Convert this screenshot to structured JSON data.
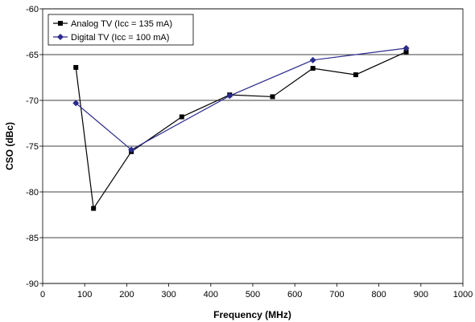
{
  "chart_data": {
    "type": "line",
    "xlabel": "Frequency (MHz)",
    "ylabel": "CSO (dBc)",
    "xlim": [
      0,
      1000
    ],
    "ylim": [
      -90,
      -60
    ],
    "x_ticks": [
      0,
      100,
      200,
      300,
      400,
      500,
      600,
      700,
      800,
      900,
      1000
    ],
    "y_ticks": [
      -60,
      -65,
      -70,
      -75,
      -80,
      -85,
      -90
    ],
    "grid": "horizontal",
    "legend_position": "top-left",
    "series": [
      {
        "name": "Analog TV (Icc = 135 mA)",
        "color": "#000000",
        "marker": "square",
        "x": [
          79,
          121,
          211,
          331,
          445,
          547,
          643,
          745,
          865
        ],
        "y": [
          -66.4,
          -81.8,
          -75.6,
          -71.8,
          -69.4,
          -69.6,
          -66.5,
          -67.2,
          -64.7
        ]
      },
      {
        "name": "Digital TV (Icc = 100 mA)",
        "color": "#2b2b8c",
        "marker": "diamond",
        "x": [
          79,
          211,
          445,
          643,
          865
        ],
        "y": [
          -70.3,
          -75.4,
          -69.5,
          -65.6,
          -64.3
        ]
      }
    ]
  }
}
